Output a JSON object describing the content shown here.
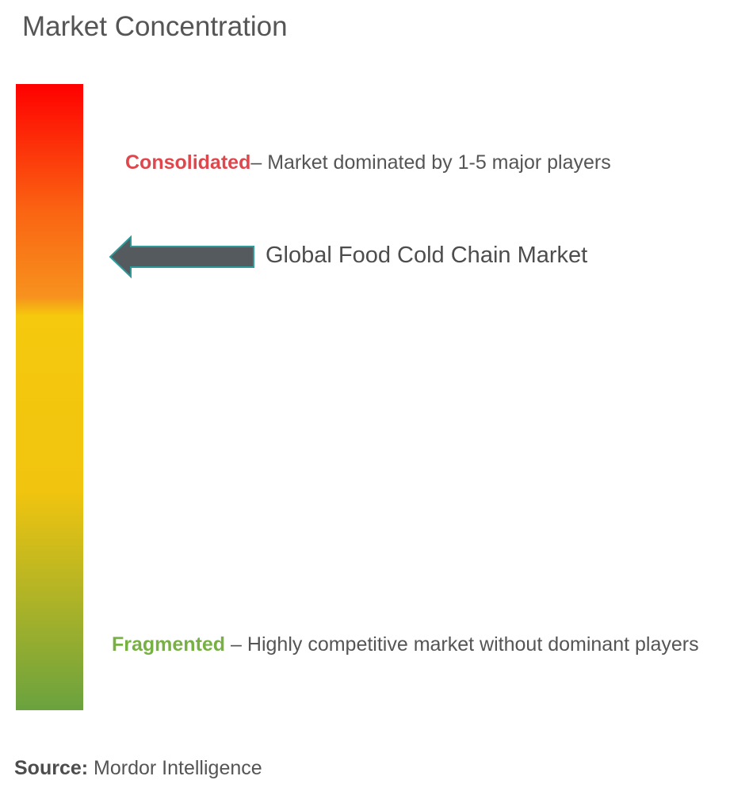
{
  "title": "Market Concentration",
  "chart_data": {
    "type": "gradient-scale",
    "scale": {
      "top_label": "Consolidated",
      "top_description": "– Market dominated by 1-5 major players",
      "bottom_label": "Fragmented",
      "bottom_description": "– Highly competitive market without dominant players",
      "colors": [
        "#ff0000",
        "#f7921e",
        "#f5c90d",
        "#f1c40f",
        "#6aa23f"
      ]
    },
    "marker": {
      "label": "Global Food Cold Chain Market"
    }
  },
  "source": {
    "label": "Source:",
    "value": "Mordor Intelligence"
  },
  "colors": {
    "consolidated": "#e0474c",
    "fragmented": "#77b043",
    "arrow_fill": "#555a5f",
    "arrow_stroke": "#2f9a9a"
  }
}
